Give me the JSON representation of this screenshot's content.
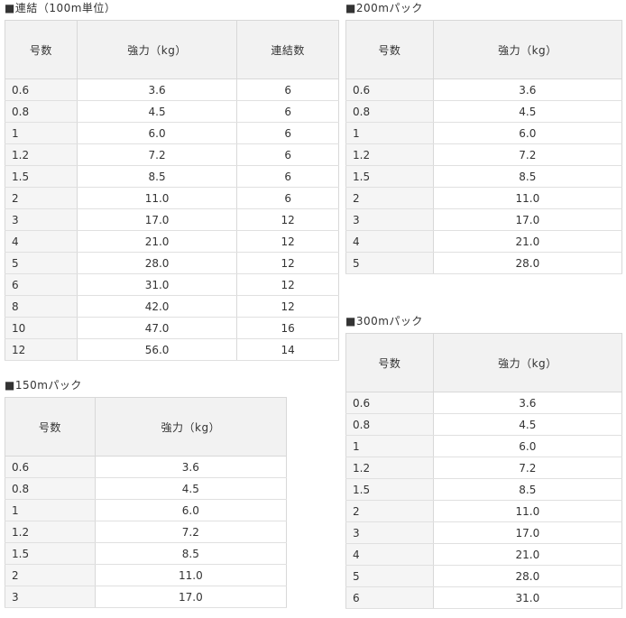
{
  "page": {
    "background": "#ffffff",
    "text_color": "#333333",
    "header_bg": "#f2f2f2",
    "first_column_bg": "#f5f5f5",
    "border_color": "#d8d8d8"
  },
  "tables": {
    "renketsu": {
      "title": "■連結（100m単位）",
      "headers": [
        "号数",
        "強力（kg）",
        "連結数"
      ],
      "rows": [
        [
          "0.6",
          "3.6",
          "6"
        ],
        [
          "0.8",
          "4.5",
          "6"
        ],
        [
          "1",
          "6.0",
          "6"
        ],
        [
          "1.2",
          "7.2",
          "6"
        ],
        [
          "1.5",
          "8.5",
          "6"
        ],
        [
          "2",
          "11.0",
          "6"
        ],
        [
          "3",
          "17.0",
          "12"
        ],
        [
          "4",
          "21.0",
          "12"
        ],
        [
          "5",
          "28.0",
          "12"
        ],
        [
          "6",
          "31.0",
          "12"
        ],
        [
          "8",
          "42.0",
          "12"
        ],
        [
          "10",
          "47.0",
          "16"
        ],
        [
          "12",
          "56.0",
          "14"
        ]
      ]
    },
    "pack200": {
      "title": "■200mパック",
      "headers": [
        "号数",
        "強力（kg）"
      ],
      "rows": [
        [
          "0.6",
          "3.6"
        ],
        [
          "0.8",
          "4.5"
        ],
        [
          "1",
          "6.0"
        ],
        [
          "1.2",
          "7.2"
        ],
        [
          "1.5",
          "8.5"
        ],
        [
          "2",
          "11.0"
        ],
        [
          "3",
          "17.0"
        ],
        [
          "4",
          "21.0"
        ],
        [
          "5",
          "28.0"
        ]
      ]
    },
    "pack150": {
      "title": "■150mパック",
      "headers": [
        "号数",
        "強力（kg）"
      ],
      "rows": [
        [
          "0.6",
          "3.6"
        ],
        [
          "0.8",
          "4.5"
        ],
        [
          "1",
          "6.0"
        ],
        [
          "1.2",
          "7.2"
        ],
        [
          "1.5",
          "8.5"
        ],
        [
          "2",
          "11.0"
        ],
        [
          "3",
          "17.0"
        ]
      ]
    },
    "pack300": {
      "title": "■300mパック",
      "headers": [
        "号数",
        "強力（kg）"
      ],
      "rows": [
        [
          "0.6",
          "3.6"
        ],
        [
          "0.8",
          "4.5"
        ],
        [
          "1",
          "6.0"
        ],
        [
          "1.2",
          "7.2"
        ],
        [
          "1.5",
          "8.5"
        ],
        [
          "2",
          "11.0"
        ],
        [
          "3",
          "17.0"
        ],
        [
          "4",
          "21.0"
        ],
        [
          "5",
          "28.0"
        ],
        [
          "6",
          "31.0"
        ]
      ]
    }
  }
}
